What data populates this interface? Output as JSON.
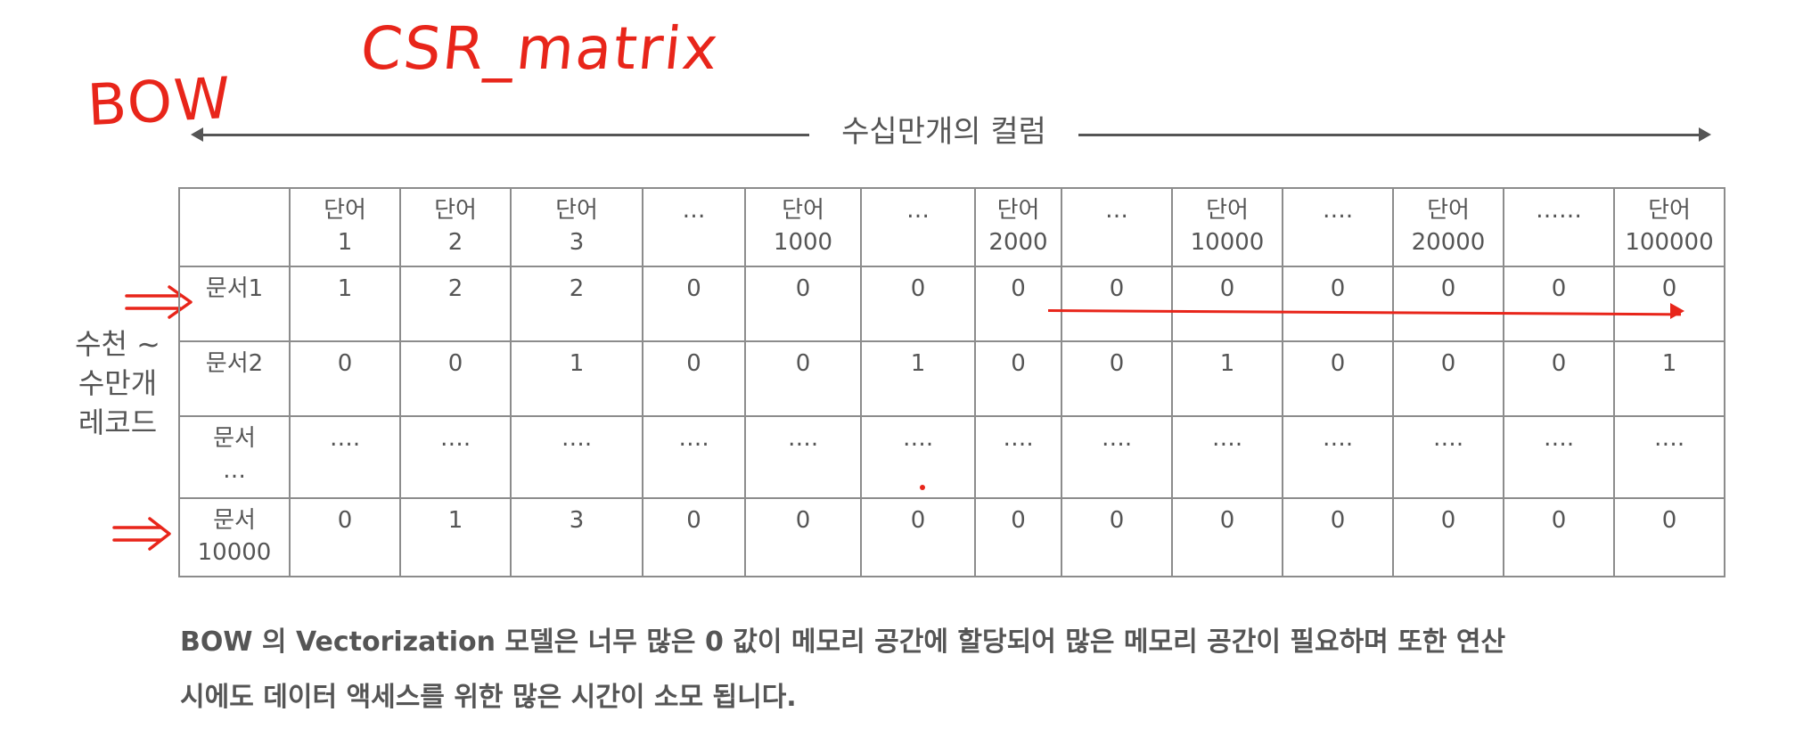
{
  "handwriting": {
    "csr": "CSR_matrix",
    "bow": "BOW"
  },
  "span_label": "수십만개의 컬럼",
  "row_side_label": [
    "수천 ~",
    "수만개",
    "레코드"
  ],
  "table": {
    "header": [
      {
        "l1": "",
        "l2": ""
      },
      {
        "l1": "단어",
        "l2": "1"
      },
      {
        "l1": "단어",
        "l2": "2"
      },
      {
        "l1": "단어",
        "l2": "3"
      },
      {
        "l1": "…",
        "l2": ""
      },
      {
        "l1": "단어",
        "l2": "1000"
      },
      {
        "l1": "…",
        "l2": ""
      },
      {
        "l1": "단어",
        "l2": "2000"
      },
      {
        "l1": "…",
        "l2": ""
      },
      {
        "l1": "단어",
        "l2": "10000"
      },
      {
        "l1": "….",
        "l2": ""
      },
      {
        "l1": "단어",
        "l2": "20000"
      },
      {
        "l1": "……",
        "l2": ""
      },
      {
        "l1": "단어",
        "l2": "100000"
      }
    ],
    "rows": [
      {
        "label_l1": "문서1",
        "label_l2": "",
        "cells": [
          "1",
          "2",
          "2",
          "0",
          "0",
          "0",
          "0",
          "0",
          "0",
          "0",
          "0",
          "0",
          "0"
        ]
      },
      {
        "label_l1": "문서2",
        "label_l2": "",
        "cells": [
          "0",
          "0",
          "1",
          "0",
          "0",
          "1",
          "0",
          "0",
          "1",
          "0",
          "0",
          "0",
          "1"
        ]
      },
      {
        "label_l1": "문서",
        "label_l2": "…",
        "cells": [
          "….",
          "….",
          "….",
          "….",
          "….",
          "….",
          "….",
          "….",
          "….",
          "….",
          "….",
          "….",
          "…."
        ]
      },
      {
        "label_l1": "문서",
        "label_l2": "10000",
        "cells": [
          "0",
          "1",
          "3",
          "0",
          "0",
          "0",
          "0",
          "0",
          "0",
          "0",
          "0",
          "0",
          "0"
        ]
      }
    ]
  },
  "caption_lines": [
    "BOW 의 Vectorization 모델은 너무 많은 0 값이 메모리 공간에 할당되어 많은 메모리 공간이 필요하며  또한 연산",
    "시에도 데이터 액세스를 위한 많은 시간이 소모 됩니다."
  ],
  "colors": {
    "annotation": "#e8251a",
    "text": "#555555",
    "grid": "#8c8c8c"
  }
}
